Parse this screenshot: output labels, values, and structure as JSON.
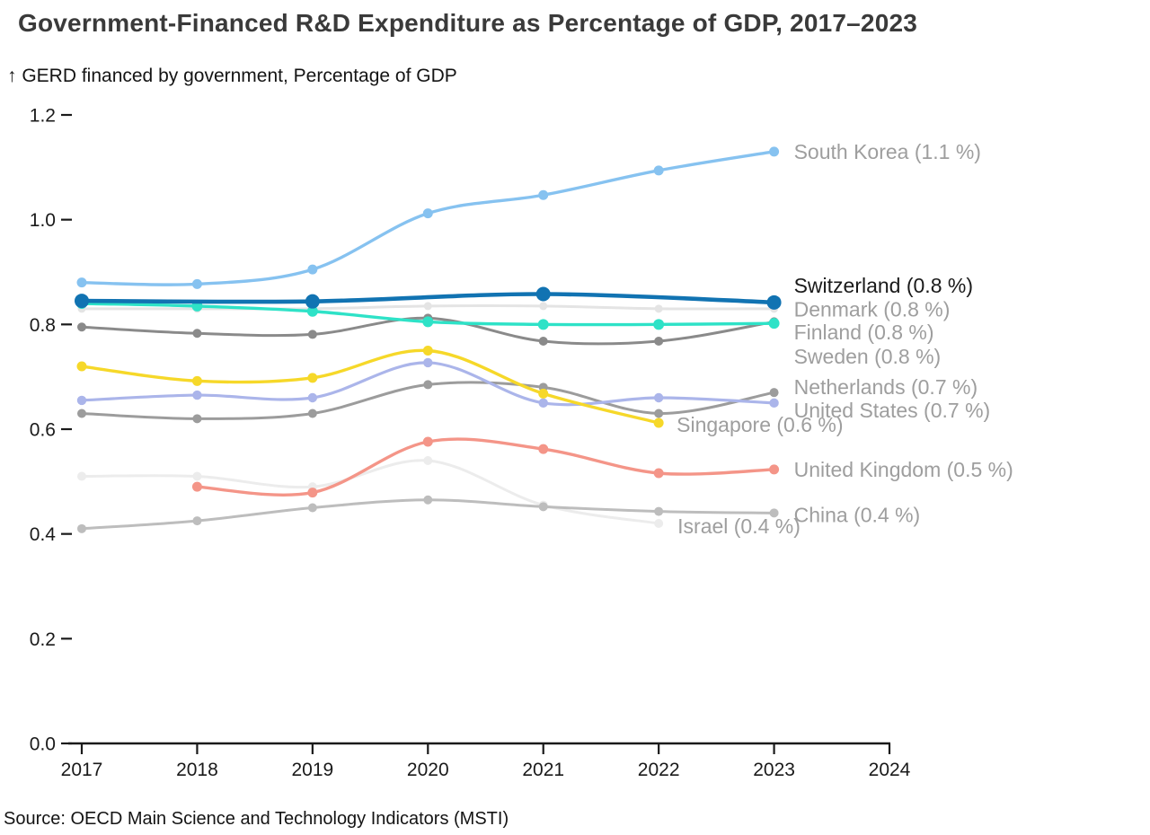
{
  "chart_data": {
    "type": "line",
    "title": "Government-Financed R&D Expenditure as Percentage of GDP, 2017–2023",
    "y_axis_title": "↑ GERD financed by government, Percentage of GDP",
    "source": "Source: OECD Main Science and Technology Indicators (MSTI)",
    "unit": "Percentage of GDP",
    "x_axis": {
      "min": 2017,
      "max": 2024,
      "ticks": [
        "2017",
        "2018",
        "2019",
        "2020",
        "2021",
        "2022",
        "2023",
        "2024"
      ]
    },
    "y_axis": {
      "min": 0.0,
      "max": 1.2,
      "ticks": [
        "0.0",
        "0.2",
        "0.4",
        "0.6",
        "0.8",
        "1.0",
        "1.2"
      ],
      "grid": false
    },
    "legend_position": "right-end-labels",
    "axis_color": "#1a1a1a",
    "label_gray": "#9e9e9e",
    "series": [
      {
        "name": "sweden",
        "label": "Sweden (0.8 %)",
        "color": "#e4e4e4",
        "label_color": "#9e9e9e",
        "years": [
          2017,
          2018,
          2019,
          2020,
          2021,
          2022,
          2023
        ],
        "values": [
          0.83,
          0.83,
          0.83,
          0.835,
          0.835,
          0.83,
          0.83
        ],
        "line_width": 3,
        "dot_radius": 4.5,
        "label_dx": 22,
        "label_dy": 53
      },
      {
        "name": "israel",
        "label": "Israel (0.4 %)",
        "color": "#ececec",
        "label_color": "#9e9e9e",
        "years": [
          2017,
          2018,
          2019,
          2020,
          2021,
          2022
        ],
        "values": [
          0.51,
          0.51,
          0.49,
          0.54,
          0.455,
          0.42
        ],
        "line_width": 3,
        "dot_radius": 5,
        "label_dx": 21,
        "label_dy": 3
      },
      {
        "name": "china",
        "label": "China (0.4 %)",
        "color": "#bdbdbd",
        "label_color": "#9e9e9e",
        "years": [
          2017,
          2018,
          2019,
          2020,
          2021,
          2022,
          2023
        ],
        "values": [
          0.41,
          0.425,
          0.45,
          0.465,
          0.452,
          0.443,
          0.44
        ],
        "line_width": 3,
        "dot_radius": 5,
        "label_dx": 22,
        "label_dy": 2
      },
      {
        "name": "netherlands",
        "label": "Netherlands (0.7 %)",
        "color": "#9c9c9c",
        "label_color": "#9e9e9e",
        "years": [
          2017,
          2018,
          2019,
          2020,
          2021,
          2022,
          2023
        ],
        "values": [
          0.63,
          0.62,
          0.63,
          0.685,
          0.68,
          0.63,
          0.67
        ],
        "line_width": 3,
        "dot_radius": 5,
        "label_dx": 22,
        "label_dy": -6
      },
      {
        "name": "denmark",
        "label": "Denmark (0.8 %)",
        "color": "#8a8a8a",
        "label_color": "#9e9e9e",
        "years": [
          2017,
          2018,
          2019,
          2020,
          2021,
          2022,
          2023
        ],
        "values": [
          0.795,
          0.783,
          0.781,
          0.812,
          0.768,
          0.768,
          0.805
        ],
        "line_width": 3,
        "dot_radius": 5,
        "label_dx": 22,
        "label_dy": -14
      },
      {
        "name": "united_states",
        "label": "United States (0.7 %)",
        "color": "#abb5ea",
        "label_color": "#9e9e9e",
        "years": [
          2017,
          2018,
          2019,
          2020,
          2021,
          2022,
          2023
        ],
        "values": [
          0.655,
          0.665,
          0.66,
          0.727,
          0.65,
          0.66,
          0.65
        ],
        "line_width": 3.2,
        "dot_radius": 5.2,
        "label_dx": 22,
        "label_dy": 8
      },
      {
        "name": "singapore",
        "label": "Singapore (0.6 %)",
        "color": "#f6d829",
        "label_color": "#9e9e9e",
        "years": [
          2017,
          2018,
          2019,
          2020,
          2021,
          2022
        ],
        "values": [
          0.72,
          0.692,
          0.698,
          0.75,
          0.668,
          0.612
        ],
        "line_width": 3.4,
        "dot_radius": 5.5,
        "label_dx": 20,
        "label_dy": 2
      },
      {
        "name": "united_kingdom",
        "label": "United Kingdom (0.5 %)",
        "color": "#f49588",
        "label_color": "#9e9e9e",
        "years": [
          2018,
          2019,
          2020,
          2021,
          2022,
          2023
        ],
        "values": [
          0.49,
          0.479,
          0.576,
          0.562,
          0.516,
          0.523
        ],
        "line_width": 3.4,
        "dot_radius": 5.5,
        "label_dx": 22,
        "label_dy": 0
      },
      {
        "name": "finland",
        "label": "Finland (0.8 %)",
        "color": "#2ee2c7",
        "label_color": "#9e9e9e",
        "years": [
          2017,
          2018,
          2019,
          2020,
          2021,
          2022,
          2023
        ],
        "values": [
          0.84,
          0.835,
          0.825,
          0.805,
          0.8,
          0.8,
          0.802
        ],
        "line_width": 3.4,
        "dot_radius": 6,
        "label_dx": 22,
        "label_dy": 10
      },
      {
        "name": "south_korea",
        "label": "South Korea (1.1 %)",
        "color": "#86c2f0",
        "label_color": "#9e9e9e",
        "years": [
          2017,
          2018,
          2019,
          2020,
          2021,
          2022,
          2023
        ],
        "values": [
          0.88,
          0.877,
          0.905,
          1.012,
          1.047,
          1.094,
          1.13
        ],
        "line_width": 3.4,
        "dot_radius": 5.5,
        "label_dx": 22,
        "label_dy": 0
      },
      {
        "name": "switzerland",
        "label": "Switzerland (0.8 %)",
        "color": "#1173b2",
        "label_color": "#1a1a1a",
        "years": [
          2017,
          2019,
          2021,
          2023
        ],
        "values": [
          0.845,
          0.844,
          0.858,
          0.842
        ],
        "line_width": 4.6,
        "dot_radius": 8,
        "label_dx": 22,
        "label_dy": -19
      }
    ]
  }
}
